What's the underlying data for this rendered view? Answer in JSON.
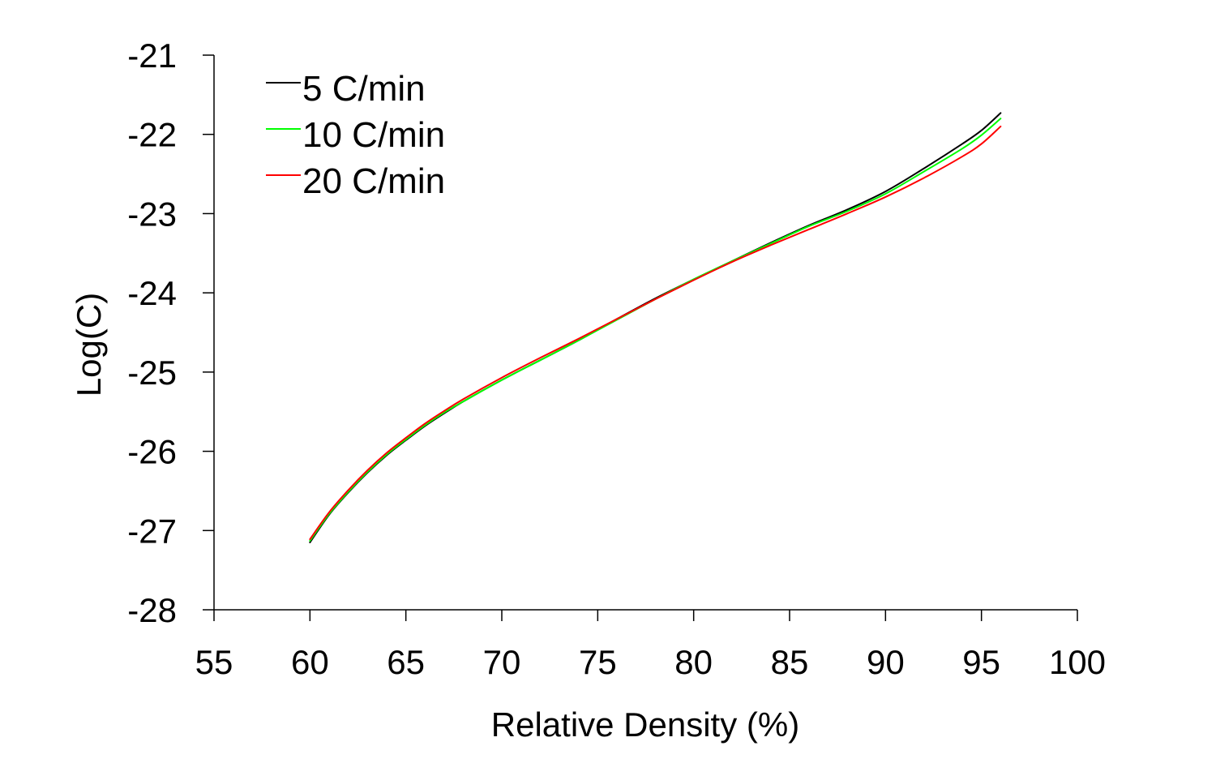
{
  "chart_data": {
    "type": "line",
    "title": "",
    "xlabel": "Relative Density (%)",
    "ylabel": "Log(C)",
    "xlim": [
      55,
      100
    ],
    "ylim": [
      -28,
      -21
    ],
    "xticks": [
      55,
      60,
      65,
      70,
      75,
      80,
      85,
      90,
      95,
      100
    ],
    "yticks": [
      -21,
      -22,
      -23,
      -24,
      -25,
      -26,
      -27,
      -28
    ],
    "grid": false,
    "legend_position": "top-left",
    "series": [
      {
        "name": "5 C/min",
        "color": "#000000",
        "x": [
          60,
          61,
          62,
          63,
          64,
          65,
          66,
          67,
          68,
          70,
          72,
          74,
          76,
          78,
          80,
          82,
          84,
          86,
          88,
          90,
          92,
          94,
          95,
          96
        ],
        "y": [
          -27.15,
          -26.8,
          -26.52,
          -26.27,
          -26.05,
          -25.86,
          -25.68,
          -25.52,
          -25.37,
          -25.1,
          -24.85,
          -24.6,
          -24.33,
          -24.07,
          -23.83,
          -23.6,
          -23.37,
          -23.15,
          -22.95,
          -22.72,
          -22.43,
          -22.12,
          -21.95,
          -21.73
        ]
      },
      {
        "name": "10 C/min",
        "color": "#00ff00",
        "x": [
          60,
          61,
          62,
          63,
          64,
          65,
          66,
          67,
          68,
          70,
          72,
          74,
          76,
          78,
          80,
          82,
          84,
          86,
          88,
          90,
          92,
          94,
          95,
          96
        ],
        "y": [
          -27.13,
          -26.79,
          -26.51,
          -26.26,
          -26.04,
          -25.85,
          -25.67,
          -25.51,
          -25.37,
          -25.1,
          -24.85,
          -24.6,
          -24.34,
          -24.08,
          -23.83,
          -23.6,
          -23.38,
          -23.16,
          -22.97,
          -22.75,
          -22.47,
          -22.18,
          -22.01,
          -21.8
        ]
      },
      {
        "name": "20 C/min",
        "color": "#ff0000",
        "x": [
          60,
          61,
          62,
          63,
          64,
          65,
          66,
          67,
          68,
          70,
          72,
          74,
          76,
          78,
          80,
          82,
          84,
          86,
          88,
          90,
          92,
          94,
          95,
          96
        ],
        "y": [
          -27.11,
          -26.77,
          -26.49,
          -26.24,
          -26.02,
          -25.83,
          -25.65,
          -25.49,
          -25.34,
          -25.07,
          -24.82,
          -24.58,
          -24.33,
          -24.08,
          -23.84,
          -23.61,
          -23.4,
          -23.2,
          -23.0,
          -22.79,
          -22.55,
          -22.28,
          -22.12,
          -21.9
        ]
      }
    ]
  }
}
